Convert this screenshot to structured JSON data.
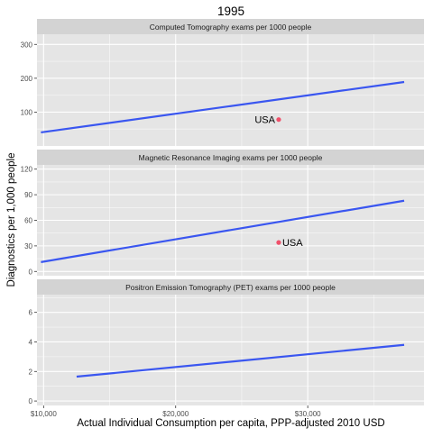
{
  "chart_data": {
    "type": "line",
    "title": "1995",
    "xlabel": "Actual Individual Consumption per capita, PPP-adjusted 2010 USD",
    "ylabel": "Diagnostics per 1,000 people",
    "xlim": [
      9500,
      38800
    ],
    "x_ticks": [
      10000,
      20000,
      30000
    ],
    "x_tick_labels": [
      "$10,000",
      "$20,000",
      "$30,000"
    ],
    "grid": true,
    "colors": {
      "line": "#3a56f0",
      "point": "#f0506a",
      "panel_bg": "#e5e5e5",
      "strip_bg": "#d3d3d3",
      "grid": "#ffffff"
    },
    "panels": [
      {
        "strip": "Computed Tomography exams per 1000 people",
        "ylim": [
          0,
          330
        ],
        "y_ticks": [
          100,
          200,
          300
        ],
        "y_tick_labels": [
          "100",
          "200",
          "300"
        ],
        "series": [
          {
            "x": [
              9800,
              37300
            ],
            "y": [
              40,
              189
            ]
          }
        ],
        "point": {
          "label": "USA",
          "x": 27800,
          "y": 78,
          "label_side": "left"
        }
      },
      {
        "strip": "Magnetic Resonance Imaging exams per 1000 people",
        "ylim": [
          -5,
          125
        ],
        "y_ticks": [
          0,
          30,
          60,
          90,
          120
        ],
        "y_tick_labels": [
          "0",
          "30",
          "60",
          "90",
          "120"
        ],
        "series": [
          {
            "x": [
              9800,
              37300
            ],
            "y": [
              11,
              83
            ]
          }
        ],
        "point": {
          "label": "USA",
          "x": 27800,
          "y": 34,
          "label_side": "right"
        }
      },
      {
        "strip": "Positron Emission Tomography (PET) exams per 1000 people",
        "ylim": [
          -0.3,
          7.2
        ],
        "y_ticks": [
          0,
          2,
          4,
          6
        ],
        "y_tick_labels": [
          "0",
          "2",
          "4",
          "6"
        ],
        "series": [
          {
            "x": [
              12500,
              37300
            ],
            "y": [
              1.65,
              3.8
            ]
          }
        ],
        "point": null
      }
    ]
  }
}
